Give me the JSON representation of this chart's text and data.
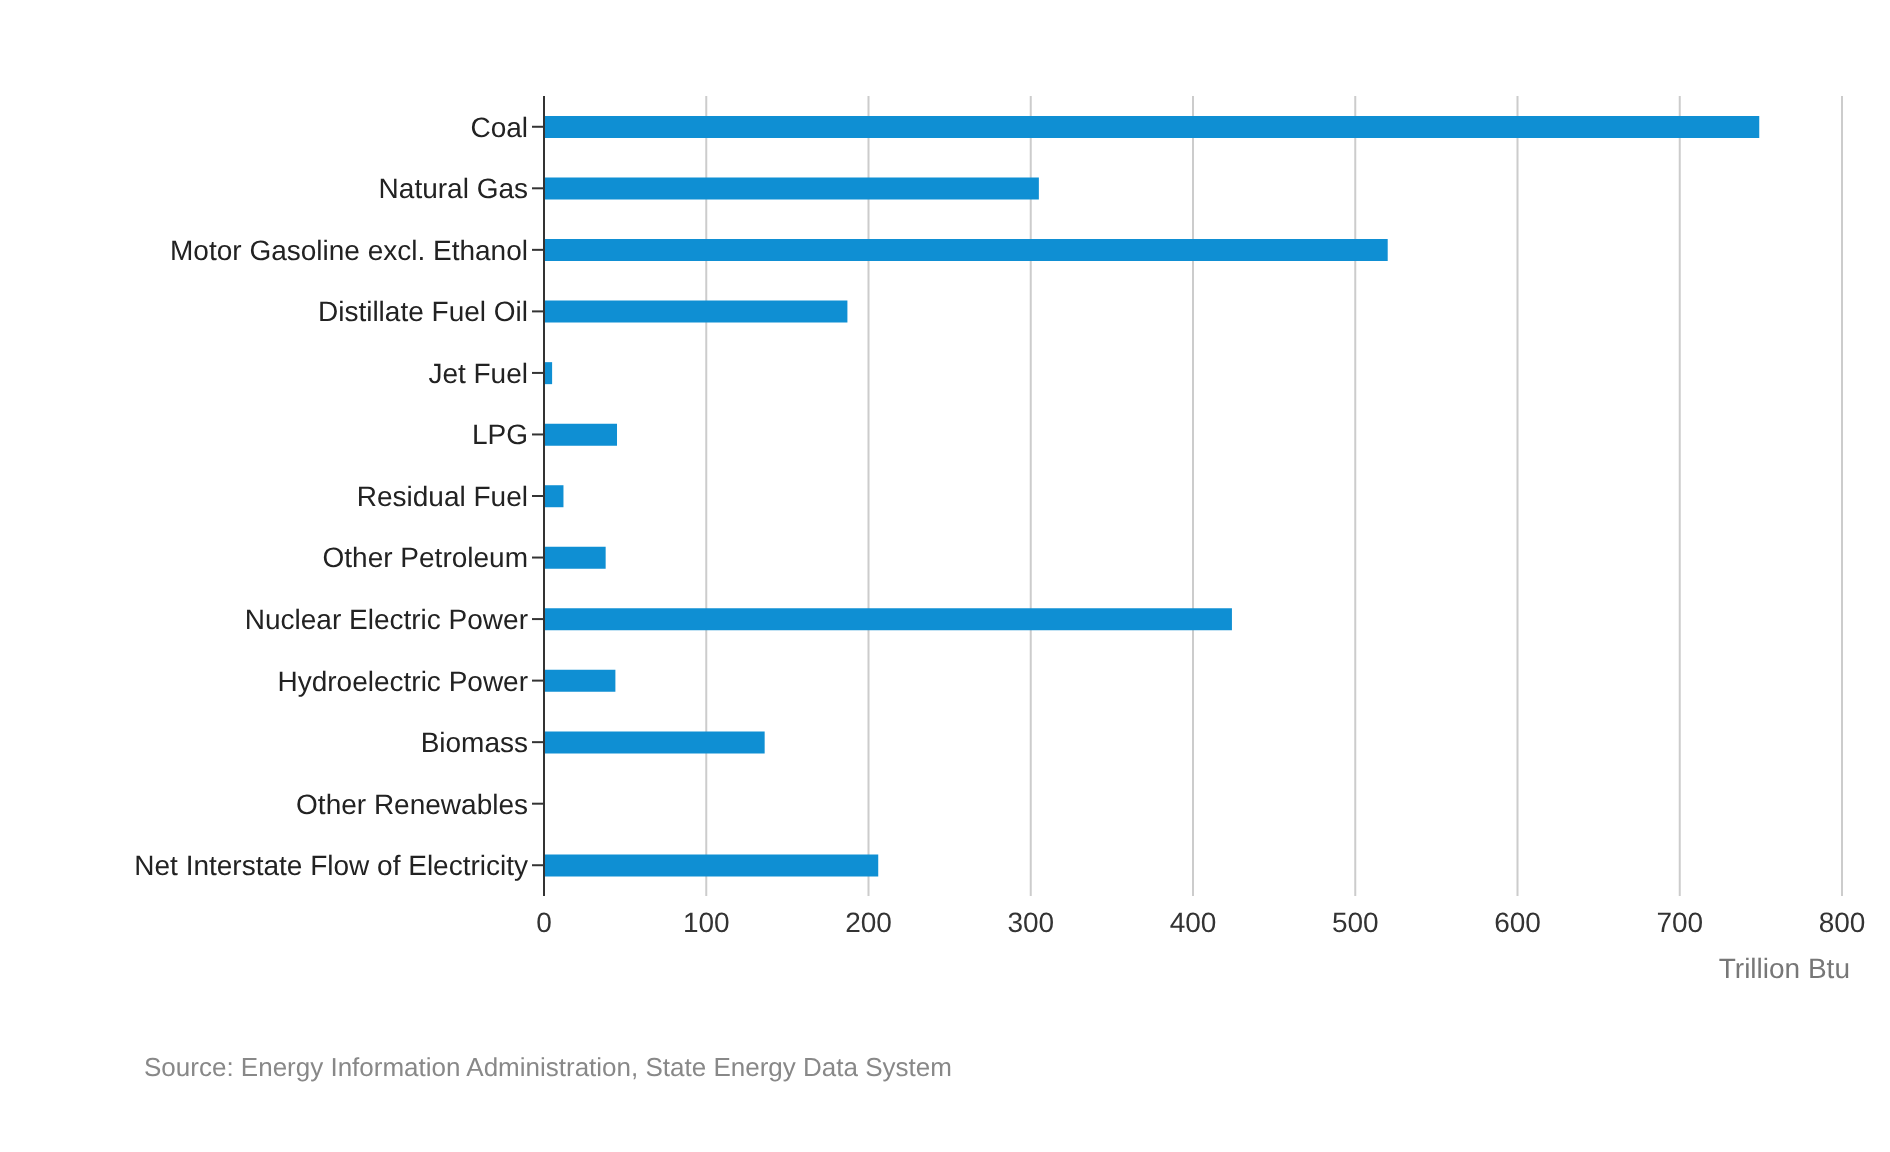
{
  "chart_data": {
    "type": "bar",
    "orientation": "horizontal",
    "categories": [
      "Coal",
      "Natural Gas",
      "Motor Gasoline excl. Ethanol",
      "Distillate Fuel Oil",
      "Jet Fuel",
      "LPG",
      "Residual Fuel",
      "Other Petroleum",
      "Nuclear Electric Power",
      "Hydroelectric Power",
      "Biomass",
      "Other Renewables",
      "Net Interstate Flow of Electricity"
    ],
    "values": [
      749,
      305,
      520,
      187,
      5,
      45,
      12,
      38,
      424,
      44,
      136,
      0,
      206
    ],
    "color": "#0f8fd3",
    "xlim": [
      0,
      800
    ],
    "xticks": [
      0,
      100,
      200,
      300,
      400,
      500,
      600,
      700,
      800
    ],
    "xlabel": "Trillion Btu",
    "grid": "x",
    "annotations": [
      "Source: Energy Information Administration, State Energy Data System"
    ]
  }
}
